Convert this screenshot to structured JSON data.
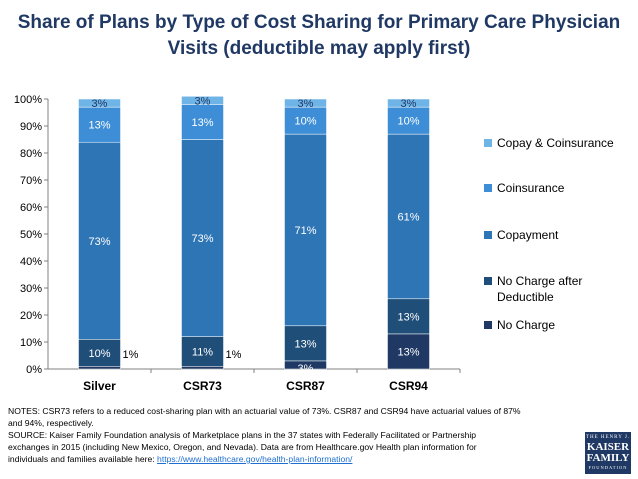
{
  "chart_data": {
    "type": "bar",
    "stacked": true,
    "title": "Share of Plans by Type of Cost Sharing for Primary Care Physician Visits (deductible may apply first)",
    "categories": [
      "Silver",
      "CSR73",
      "CSR87",
      "CSR94"
    ],
    "ylim": [
      0,
      100
    ],
    "yticks": [
      "0%",
      "10%",
      "20%",
      "30%",
      "40%",
      "50%",
      "60%",
      "70%",
      "80%",
      "90%",
      "100%"
    ],
    "legend_position": "right",
    "series": [
      {
        "name": "No Charge",
        "color": "#1f3864",
        "values": [
          1,
          1,
          3,
          13
        ],
        "labels": [
          "1%",
          "1%",
          "3%",
          "13%"
        ]
      },
      {
        "name": "No Charge after Deductible",
        "color": "#1f4e79",
        "values": [
          10,
          11,
          13,
          13
        ],
        "labels": [
          "10%",
          "11%",
          "13%",
          "13%"
        ]
      },
      {
        "name": "Copayment",
        "color": "#2e75b6",
        "values": [
          73,
          73,
          71,
          61
        ],
        "labels": [
          "73%",
          "73%",
          "71%",
          "61%"
        ]
      },
      {
        "name": "Coinsurance",
        "color": "#3d8ed6",
        "values": [
          13,
          13,
          10,
          10
        ],
        "labels": [
          "13%",
          "13%",
          "10%",
          "10%"
        ]
      },
      {
        "name": "Copay & Coinsurance",
        "color": "#6fb4e6",
        "values": [
          3,
          3,
          3,
          3
        ],
        "labels": [
          "3%",
          "3%",
          "3%",
          "3%"
        ]
      }
    ]
  },
  "notes": {
    "line1": "NOTES: CSR73 refers to a reduced cost-sharing plan with an actuarial value of 73%. CSR87 and CSR94 have actuarial values of 87%",
    "line2": "and 94%, respectively.",
    "line3": "SOURCE: Kaiser Family Foundation analysis of Marketplace plans in the 37 states with Federally Facilitated or Partnership",
    "line4": "exchanges in 2015 (including New Mexico, Oregon, and Nevada). Data are from Healthcare.gov Health plan information for",
    "line5_prefix": "individuals and families available here: ",
    "url": "https://www.healthcare.gov/health-plan-information/"
  },
  "logo": {
    "top": "THE HENRY J.",
    "name1": "KAISER",
    "name2": "FAMILY",
    "bottom": "FOUNDATION"
  }
}
